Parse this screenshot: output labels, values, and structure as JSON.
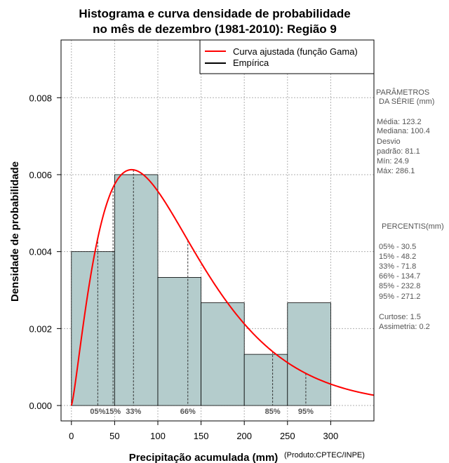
{
  "chart_data": {
    "type": "bar",
    "title_line1": "Histograma e curva densidade de probabilidade",
    "title_line2": "no mês de dezembro (1981-2010): Região 9",
    "xlabel": "Precipitação acumulada (mm)",
    "ylabel": "Densidade de probabilidade",
    "credit": "(Produto:CPTEC/INPE)",
    "xlim": [
      -12,
      350
    ],
    "ylim": [
      -0.0004,
      0.0095
    ],
    "x_ticks": [
      0,
      50,
      100,
      150,
      200,
      250,
      300
    ],
    "x_tick_labels": [
      "0",
      "50",
      "100",
      "150",
      "200",
      "250",
      "300"
    ],
    "y_ticks": [
      0.0,
      0.002,
      0.004,
      0.006,
      0.008
    ],
    "y_tick_labels": [
      "0.000",
      "0.002",
      "0.004",
      "0.006",
      "0.008"
    ],
    "grid": true,
    "bins": [
      {
        "start": 0,
        "end": 50,
        "density": 0.004
      },
      {
        "start": 50,
        "end": 100,
        "density": 0.006
      },
      {
        "start": 100,
        "end": 150,
        "density": 0.00333
      },
      {
        "start": 150,
        "end": 200,
        "density": 0.00267
      },
      {
        "start": 200,
        "end": 250,
        "density": 0.00133
      },
      {
        "start": 250,
        "end": 300,
        "density": 0.00267
      }
    ],
    "gamma_fit": {
      "shape": 2.3,
      "scale": 53.6,
      "x_max": 350
    },
    "percentile_markers": [
      {
        "label": "05%",
        "value": 30.5
      },
      {
        "label": "15%",
        "value": 48.2
      },
      {
        "label": "33%",
        "value": 71.8
      },
      {
        "label": "66%",
        "value": 134.7
      },
      {
        "label": "85%",
        "value": 232.8
      },
      {
        "label": "95%",
        "value": 271.2
      }
    ],
    "legend": {
      "position": "top-right",
      "entries": [
        {
          "label": "Curva ajustada (função Gama)",
          "color": "#ff0000"
        },
        {
          "label": "Empírica",
          "color": "#000000"
        }
      ]
    },
    "colors": {
      "bar_fill": "#b4cccc",
      "curve": "#ff0000"
    }
  },
  "side_panel": {
    "params_title_1": "PARÂMETROS",
    "params_title_2": "DA SÉRIE (mm)",
    "media": "Média:  123.2",
    "mediana": "Mediana:  100.4",
    "desvio_1": "Desvio",
    "desvio_2": "padrão:  81.1",
    "min": "Mín:  24.9",
    "max": "Máx:  286.1",
    "percentis_title": "PERCENTIS(mm)",
    "percentis": [
      "05% -   30.5",
      "15% -   48.2",
      "33% -   71.8",
      "66% -   134.7",
      "85% -   232.8",
      "95% -   271.2"
    ],
    "curtose": "Curtose:  1.5",
    "assimetria": "Assimetria:  0.2"
  }
}
